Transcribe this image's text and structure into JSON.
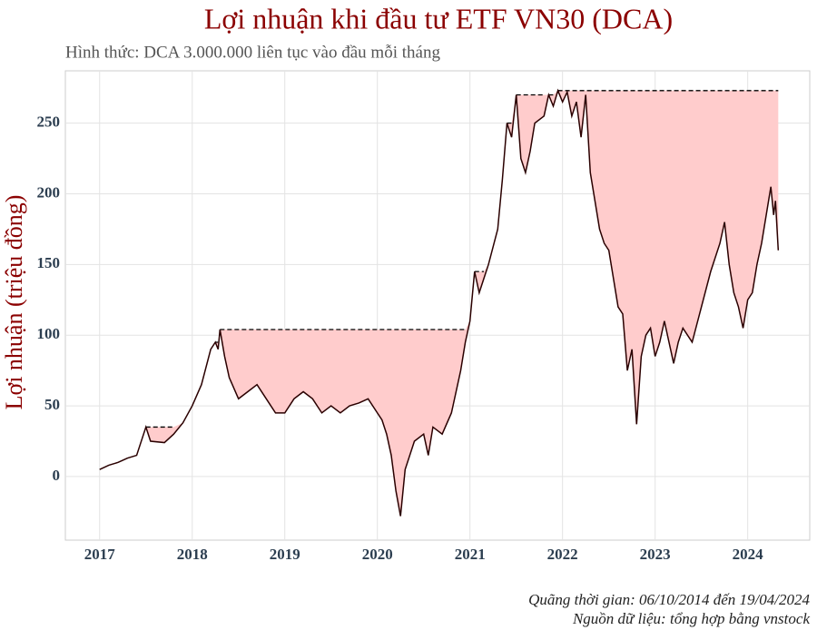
{
  "chart_data": {
    "type": "line",
    "title": "Lợi nhuận khi đầu tư ETF VN30 (DCA)",
    "subtitle": "Hình thức: DCA 3.000.000  liên tục vào đầu mỗi tháng",
    "y_label": "Lợi nhuận (triệu đồng)",
    "caption": [
      "Quãng thời gian: 06/10/2014 đến 19/04/2024",
      "Nguồn dữ liệu: tổng hợp bằng vnstock"
    ],
    "x": [
      2017.0,
      2017.1,
      2017.2,
      2017.3,
      2017.4,
      2017.5,
      2017.55,
      2017.7,
      2017.8,
      2017.9,
      2018.0,
      2018.1,
      2018.2,
      2018.25,
      2018.28,
      2018.3,
      2018.35,
      2018.4,
      2018.5,
      2018.6,
      2018.7,
      2018.8,
      2018.9,
      2019.0,
      2019.1,
      2019.2,
      2019.3,
      2019.4,
      2019.5,
      2019.6,
      2019.7,
      2019.8,
      2019.9,
      2020.0,
      2020.05,
      2020.1,
      2020.15,
      2020.2,
      2020.25,
      2020.3,
      2020.35,
      2020.4,
      2020.5,
      2020.55,
      2020.6,
      2020.7,
      2020.8,
      2020.9,
      2020.95,
      2021.0,
      2021.05,
      2021.1,
      2021.15,
      2021.2,
      2021.3,
      2021.35,
      2021.4,
      2021.45,
      2021.5,
      2021.55,
      2021.6,
      2021.65,
      2021.7,
      2021.8,
      2021.85,
      2021.9,
      2021.95,
      2022.0,
      2022.05,
      2022.1,
      2022.15,
      2022.2,
      2022.25,
      2022.3,
      2022.35,
      2022.4,
      2022.45,
      2022.5,
      2022.55,
      2022.6,
      2022.65,
      2022.7,
      2022.75,
      2022.8,
      2022.85,
      2022.9,
      2022.95,
      2023.0,
      2023.05,
      2023.1,
      2023.15,
      2023.2,
      2023.25,
      2023.3,
      2023.4,
      2023.5,
      2023.6,
      2023.7,
      2023.75,
      2023.8,
      2023.85,
      2023.9,
      2023.95,
      2024.0,
      2024.05,
      2024.1,
      2024.15,
      2024.2,
      2024.25,
      2024.28,
      2024.3,
      2024.33
    ],
    "values": [
      5,
      8,
      10,
      13,
      15,
      35,
      25,
      24,
      30,
      38,
      50,
      65,
      90,
      95,
      90,
      104,
      85,
      70,
      55,
      60,
      65,
      55,
      45,
      45,
      55,
      60,
      55,
      45,
      50,
      45,
      50,
      52,
      55,
      45,
      40,
      30,
      15,
      -10,
      -28,
      5,
      15,
      25,
      30,
      15,
      35,
      30,
      45,
      75,
      95,
      110,
      145,
      130,
      140,
      150,
      175,
      210,
      250,
      240,
      270,
      225,
      215,
      230,
      250,
      255,
      270,
      262,
      273,
      265,
      272,
      255,
      265,
      240,
      270,
      215,
      195,
      175,
      165,
      160,
      140,
      120,
      115,
      75,
      90,
      37,
      85,
      100,
      105,
      85,
      95,
      110,
      95,
      80,
      95,
      105,
      95,
      120,
      145,
      165,
      180,
      150,
      130,
      120,
      105,
      125,
      130,
      150,
      165,
      185,
      205,
      185,
      195,
      160
    ],
    "color": "#2a0000",
    "fill_color": "#ffcccc",
    "peak_color": "#000000",
    "xlim": [
      2016.63,
      2024.67
    ],
    "xticks": [
      2017,
      2018,
      2019,
      2020,
      2021,
      2022,
      2023,
      2024
    ],
    "ylim": [
      -45,
      287
    ],
    "yticks": [
      0,
      50,
      100,
      150,
      200,
      250
    ],
    "grid": true
  }
}
